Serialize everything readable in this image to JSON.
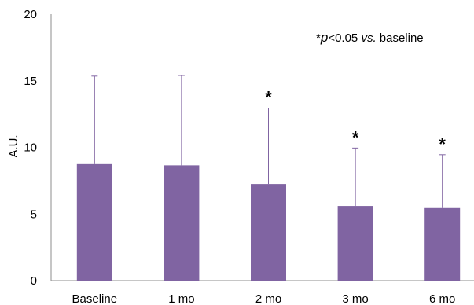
{
  "chart_data": {
    "type": "bar",
    "ylabel": "A.U.",
    "xlabel": "",
    "ylim": [
      0,
      20
    ],
    "yticks": [
      0,
      5,
      10,
      15,
      20
    ],
    "categories": [
      "Baseline",
      "1 mo",
      "2 mo",
      "3 mo",
      "6 mo"
    ],
    "values": [
      8.8,
      8.65,
      7.25,
      5.6,
      5.5
    ],
    "error_upper": [
      15.35,
      15.4,
      12.95,
      9.95,
      9.45
    ],
    "significance": [
      "",
      "",
      "*",
      "*",
      "*"
    ],
    "annotation": {
      "star": "*",
      "p": "p",
      "threshold": "<0.05 ",
      "vs": "vs.",
      "reference": " baseline"
    },
    "grid": false,
    "bar_color": "#8064a2"
  }
}
